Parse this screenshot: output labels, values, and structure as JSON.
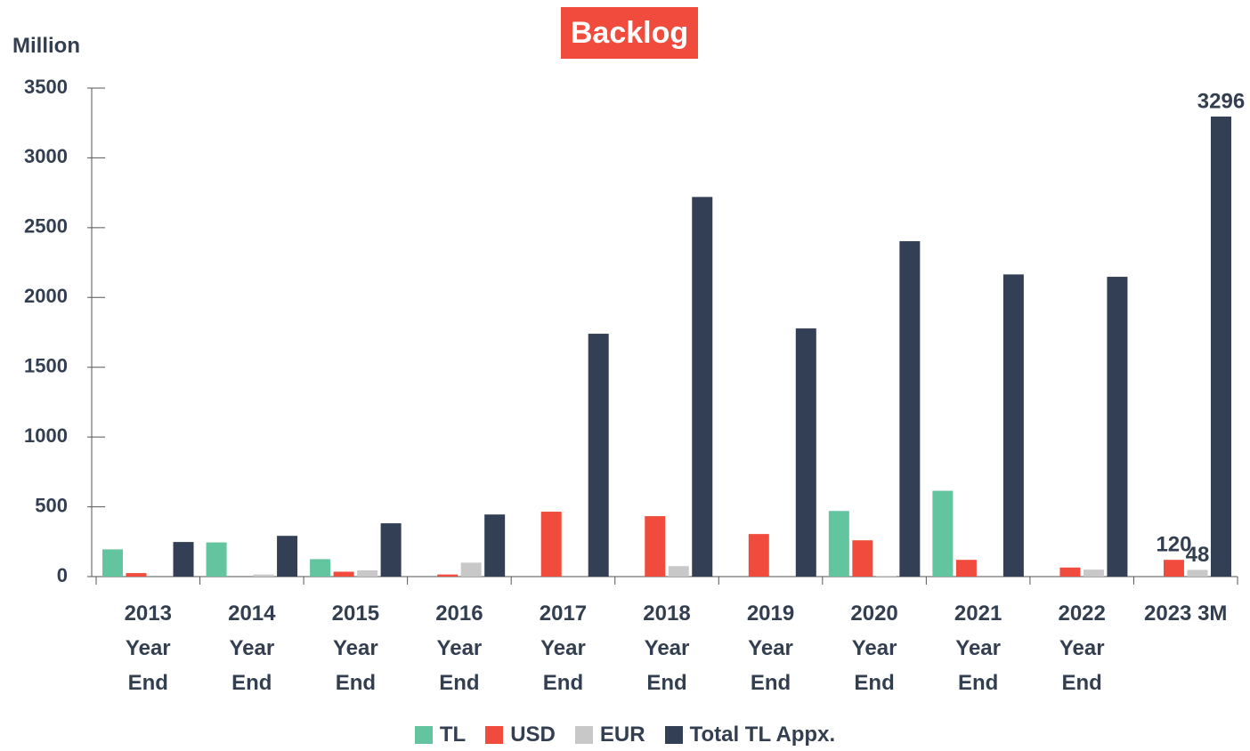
{
  "chart_data": {
    "type": "bar",
    "title": "Backlog",
    "y_label": "Million",
    "categories": [
      "2013 Year End",
      "2014 Year End",
      "2015 Year End",
      "2016 Year End",
      "2017 Year End",
      "2018 Year End",
      "2019 Year End",
      "2020 Year End",
      "2021 Year End",
      "2022 Year End",
      "2023 3M"
    ],
    "series": [
      {
        "name": "TL",
        "color": "#63c4a0",
        "values": [
          195,
          245,
          125,
          0,
          0,
          0,
          0,
          470,
          615,
          0,
          0
        ]
      },
      {
        "name": "USD",
        "color": "#f04b3c",
        "values": [
          25,
          0,
          35,
          15,
          465,
          433,
          305,
          260,
          120,
          65,
          120
        ],
        "value_labels": [
          null,
          null,
          null,
          null,
          null,
          null,
          null,
          null,
          null,
          null,
          "120"
        ]
      },
      {
        "name": "EUR",
        "color": "#c8c8c8",
        "values": [
          0,
          15,
          45,
          100,
          0,
          75,
          0,
          5,
          0,
          50,
          48
        ],
        "value_labels": [
          null,
          null,
          null,
          null,
          null,
          null,
          null,
          null,
          null,
          null,
          "48"
        ]
      },
      {
        "name": "Total TL Appx.",
        "color": "#323f55",
        "values": [
          248,
          292,
          382,
          445,
          1740,
          2720,
          1778,
          2403,
          2165,
          2148,
          3296
        ],
        "value_labels": [
          null,
          null,
          null,
          null,
          null,
          null,
          null,
          null,
          null,
          null,
          "3296"
        ]
      }
    ],
    "ylim": [
      0,
      3500
    ],
    "yticks": [
      0,
      500,
      1000,
      1500,
      2000,
      2500,
      3000,
      3500
    ],
    "grid": false,
    "legend": "bottom"
  }
}
